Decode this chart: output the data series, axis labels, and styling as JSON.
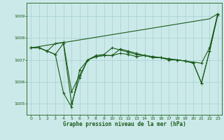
{
  "background_color": "#cce9e9",
  "grid_color": "#aad4d4",
  "line_color": "#1a5c1a",
  "xlabel": "Graphe pression niveau de la mer (hPa)",
  "ylim": [
    1004.5,
    1009.6
  ],
  "xlim": [
    -0.5,
    23.5
  ],
  "yticks": [
    1005,
    1006,
    1007,
    1008,
    1009
  ],
  "xticks": [
    0,
    1,
    2,
    3,
    4,
    5,
    6,
    7,
    8,
    9,
    10,
    11,
    12,
    13,
    14,
    15,
    16,
    17,
    18,
    19,
    20,
    21,
    22,
    23
  ],
  "series_linear": [
    1007.55,
    1007.61,
    1007.67,
    1007.73,
    1007.79,
    1007.85,
    1007.91,
    1007.97,
    1008.03,
    1008.09,
    1008.15,
    1008.21,
    1008.27,
    1008.33,
    1008.39,
    1008.45,
    1008.51,
    1008.57,
    1008.63,
    1008.69,
    1008.75,
    1008.81,
    1008.87,
    1009.1
  ],
  "series1": [
    1007.55,
    1007.55,
    1007.4,
    1007.75,
    1007.8,
    1005.55,
    1006.3,
    1007.0,
    1007.2,
    1007.25,
    1007.55,
    1007.45,
    1007.35,
    1007.25,
    1007.2,
    1007.15,
    1007.1,
    1007.05,
    1007.0,
    1006.95,
    1006.9,
    1006.85,
    1007.55,
    1009.1
  ],
  "series2": [
    1007.55,
    1007.55,
    1007.4,
    1007.25,
    1005.5,
    1004.85,
    1006.55,
    1007.0,
    1007.15,
    1007.2,
    1007.2,
    1007.5,
    1007.4,
    1007.3,
    1007.2,
    1007.15,
    1007.1,
    1007.05,
    1007.0,
    1006.95,
    1006.85,
    1005.95,
    1007.4,
    1009.05
  ],
  "series3": [
    1007.55,
    1007.55,
    1007.4,
    1007.25,
    1007.75,
    1005.0,
    1006.2,
    1007.0,
    1007.15,
    1007.2,
    1007.2,
    1007.3,
    1007.25,
    1007.15,
    1007.2,
    1007.1,
    1007.1,
    1007.0,
    1007.0,
    1006.95,
    1006.85,
    1005.95,
    1007.4,
    1009.05
  ]
}
